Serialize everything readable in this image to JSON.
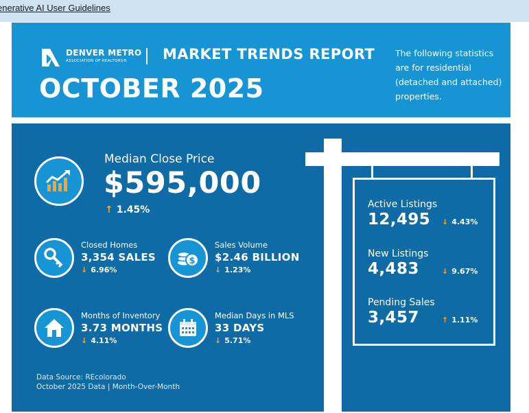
{
  "browser": {
    "link_text": "enerative AI User Guidelines"
  },
  "header": {
    "org_name": "DENVER METRO",
    "org_sub": "ASSOCIATION OF REALTORS®",
    "report_title": "MARKET TRENDS REPORT",
    "month_title": "OCTOBER 2025",
    "note": "The following statistics are for residential (detached and attached) properties.",
    "background_color": "#1794d4"
  },
  "main": {
    "background_color": "#0e6ba6",
    "median_close_price": {
      "label": "Median Close Price",
      "value": "$595,000",
      "change": "1.45%",
      "direction": "up",
      "icon": "chart-trend-up-icon"
    },
    "stats": [
      {
        "label": "Closed Homes",
        "value": "3,354 SALES",
        "change": "6.96%",
        "direction": "down",
        "icon": "key-icon"
      },
      {
        "label": "Sales Volume",
        "value": "$2.46 BILLION",
        "change": "1.23%",
        "direction": "down",
        "icon": "coins-icon"
      },
      {
        "label": "Months of Inventory",
        "value": "3.73 MONTHS",
        "change": "4.11%",
        "direction": "down",
        "icon": "house-icon"
      },
      {
        "label": "Median Days in MLS",
        "value": "33 DAYS",
        "change": "5.71%",
        "direction": "down",
        "icon": "calendar-icon"
      }
    ],
    "sign": [
      {
        "label": "Active Listings",
        "value": "12,495",
        "change": "4.43%",
        "direction": "down"
      },
      {
        "label": "New Listings",
        "value": "4,483",
        "change": "9.67%",
        "direction": "down"
      },
      {
        "label": "Pending Sales",
        "value": "3,457",
        "change": "1.11%",
        "direction": "up"
      }
    ],
    "footnote_line1": "Data Source: REcolorado",
    "footnote_line2": "October 2025 Data | Month-Over-Month",
    "arrow_color": "#f4a532"
  }
}
